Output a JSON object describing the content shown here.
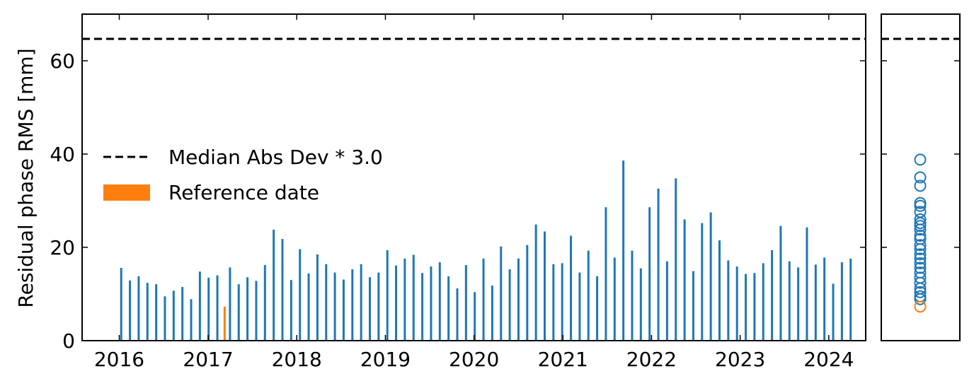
{
  "chart_data": {
    "type": "bar",
    "ylabel": "Residual phase RMS [mm]",
    "ylim": [
      0,
      70
    ],
    "yticks": [
      0,
      20,
      40,
      60
    ],
    "xlim": [
      "2015-08-01",
      "2024-06-01"
    ],
    "xticks": [
      "2016",
      "2017",
      "2018",
      "2019",
      "2020",
      "2021",
      "2022",
      "2023",
      "2024"
    ],
    "threshold": {
      "name": "Median Abs Dev * 3.0",
      "value": 64.7,
      "style": "dashed",
      "color": "#000000"
    },
    "reference": {
      "name": "Reference date",
      "date": "2017-03-10",
      "value": 7.3,
      "color": "#ff7f0e"
    },
    "series_color": "#1f77b4",
    "legend_position": "center-left",
    "series": [
      {
        "x": [
          "2016-01-09",
          "2016-02-14",
          "2016-03-21",
          "2016-04-26",
          "2016-06-01",
          "2016-07-07",
          "2016-08-12",
          "2016-09-17",
          "2016-10-23",
          "2016-11-28",
          "2017-01-03",
          "2017-02-08",
          "2017-03-10",
          "2017-04-01",
          "2017-05-07",
          "2017-06-12",
          "2017-07-18",
          "2017-08-23",
          "2017-09-28",
          "2017-11-03",
          "2017-12-09",
          "2018-01-14",
          "2018-02-19",
          "2018-03-27",
          "2018-05-02",
          "2018-06-07",
          "2018-07-13",
          "2018-08-18",
          "2018-09-23",
          "2018-10-29",
          "2018-12-04",
          "2019-01-09",
          "2019-02-14",
          "2019-03-22",
          "2019-04-27",
          "2019-06-02",
          "2019-07-08",
          "2019-08-13",
          "2019-09-18",
          "2019-10-24",
          "2019-11-29",
          "2020-01-04",
          "2020-02-09",
          "2020-03-16",
          "2020-04-21",
          "2020-05-27",
          "2020-07-02",
          "2020-08-07",
          "2020-09-12",
          "2020-10-18",
          "2020-11-23",
          "2020-12-29",
          "2021-02-03",
          "2021-03-11",
          "2021-04-16",
          "2021-05-22",
          "2021-06-27",
          "2021-08-02",
          "2021-09-07",
          "2021-10-13",
          "2021-11-18",
          "2021-12-24",
          "2022-01-29",
          "2022-03-06",
          "2022-04-11",
          "2022-05-17",
          "2022-06-22",
          "2022-07-28",
          "2022-09-02",
          "2022-10-08",
          "2022-11-13",
          "2022-12-19",
          "2023-01-24",
          "2023-03-01",
          "2023-04-06",
          "2023-05-12",
          "2023-06-17",
          "2023-07-23",
          "2023-08-28",
          "2023-10-03",
          "2023-11-08",
          "2023-12-14",
          "2024-01-19",
          "2024-02-24",
          "2024-03-31"
        ],
        "values": [
          15.6,
          12.9,
          13.8,
          12.4,
          12.1,
          9.5,
          10.7,
          11.5,
          8.9,
          14.8,
          13.5,
          14.0,
          7.3,
          15.7,
          12.1,
          13.6,
          12.8,
          16.2,
          23.8,
          21.8,
          13.0,
          19.6,
          14.4,
          18.5,
          16.4,
          14.6,
          13.1,
          15.3,
          16.4,
          13.6,
          14.6,
          19.4,
          16.1,
          17.6,
          18.4,
          14.5,
          15.9,
          16.8,
          13.8,
          11.2,
          16.2,
          10.4,
          17.6,
          11.8,
          20.2,
          15.3,
          17.6,
          20.5,
          24.9,
          23.4,
          16.4,
          16.6,
          22.5,
          14.6,
          19.3,
          13.8,
          28.6,
          17.8,
          38.6,
          19.3,
          15.5,
          28.6,
          32.6,
          17.0,
          34.8,
          26.0,
          14.9,
          25.2,
          27.5,
          21.5,
          17.2,
          15.9,
          14.3,
          14.5,
          16.6,
          19.4,
          24.6,
          17.0,
          15.7,
          24.3,
          16.3,
          17.8,
          12.2,
          16.8,
          17.6
        ]
      }
    ],
    "side_panel": {
      "type": "scatter",
      "marker": "hollow circle",
      "values_shown": [
        38.8,
        35.0,
        33.2,
        29.5,
        28.9,
        27.6,
        26.0,
        25.2,
        24.6,
        23.8,
        22.5,
        21.8,
        20.5,
        19.6,
        18.5,
        17.6,
        16.6,
        15.6,
        14.6,
        13.5,
        12.4,
        11.2,
        10.4,
        9.5,
        8.9
      ],
      "reference_value": 7.3
    }
  }
}
